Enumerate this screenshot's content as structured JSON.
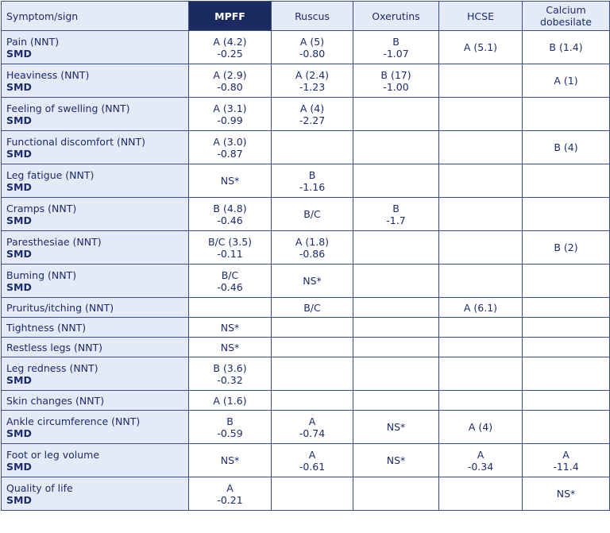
{
  "table": {
    "header": [
      "Symptom/sign",
      "MPFF",
      "Ruscus",
      "Oxerutins",
      "HCSE",
      "Calcium dobesilate"
    ],
    "rows": [
      {
        "symptom": [
          "Pain (NNT)",
          "SMD"
        ],
        "cells": [
          [
            "A (4.2)",
            "-0.25"
          ],
          [
            "A (5)",
            "-0.80"
          ],
          [
            "B",
            "-1.07"
          ],
          [
            "A (5.1)"
          ],
          [
            "B (1.4)"
          ]
        ]
      },
      {
        "symptom": [
          "Heaviness (NNT)",
          "SMD"
        ],
        "cells": [
          [
            "A (2.9)",
            "-0.80"
          ],
          [
            "A (2.4)",
            "-1.23"
          ],
          [
            "B (17)",
            "-1.00"
          ],
          [],
          [
            "A (1)"
          ]
        ]
      },
      {
        "symptom": [
          "Feeling of swelling (NNT)",
          "SMD"
        ],
        "cells": [
          [
            "A (3.1)",
            "-0.99"
          ],
          [
            "A (4)",
            "-2.27"
          ],
          [],
          [],
          []
        ]
      },
      {
        "symptom": [
          "Functional discomfort (NNT)",
          "SMD"
        ],
        "cells": [
          [
            "A (3.0)",
            "-0.87"
          ],
          [],
          [],
          [],
          [
            "B (4)"
          ]
        ]
      },
      {
        "symptom": [
          "Leg fatigue (NNT)",
          "SMD"
        ],
        "cells": [
          [
            "NS*"
          ],
          [
            "B",
            "-1.16"
          ],
          [],
          [],
          []
        ]
      },
      {
        "symptom": [
          "Cramps (NNT)",
          "SMD"
        ],
        "cells": [
          [
            "B (4.8)",
            "-0.46"
          ],
          [
            "B/C"
          ],
          [
            "B",
            "-1.7"
          ],
          [],
          []
        ]
      },
      {
        "symptom": [
          "Paresthesiae (NNT)",
          "SMD"
        ],
        "cells": [
          [
            "B/C (3.5)",
            "-0.11"
          ],
          [
            "A (1.8)",
            "-0.86"
          ],
          [],
          [],
          [
            "B (2)"
          ]
        ]
      },
      {
        "symptom": [
          "Buming (NNT)",
          "SMD"
        ],
        "cells": [
          [
            "B/C",
            "-0.46"
          ],
          [
            "NS*"
          ],
          [],
          [],
          []
        ]
      },
      {
        "symptom": [
          "Pruritus/itching (NNT)"
        ],
        "cells": [
          [],
          [
            "B/C"
          ],
          [],
          [
            "A (6.1)"
          ],
          []
        ]
      },
      {
        "symptom": [
          "Tightness (NNT)"
        ],
        "cells": [
          [
            "NS*"
          ],
          [],
          [],
          [],
          []
        ]
      },
      {
        "symptom": [
          "Restless legs (NNT)"
        ],
        "cells": [
          [
            "NS*"
          ],
          [],
          [],
          [],
          []
        ]
      },
      {
        "symptom": [
          "Leg redness (NNT)",
          "SMD"
        ],
        "cells": [
          [
            "B (3.6)",
            "-0.32"
          ],
          [],
          [],
          [],
          []
        ]
      },
      {
        "symptom": [
          "Skin changes (NNT)"
        ],
        "cells": [
          [
            "A (1.6)"
          ],
          [],
          [],
          [],
          []
        ]
      },
      {
        "symptom": [
          "Ankle circumference (NNT)",
          "SMD"
        ],
        "cells": [
          [
            "B",
            "-0.59"
          ],
          [
            "A",
            "-0.74"
          ],
          [
            "NS*"
          ],
          [
            "A (4)"
          ],
          []
        ]
      },
      {
        "symptom": [
          "Foot or leg volume",
          "SMD"
        ],
        "cells": [
          [
            "NS*"
          ],
          [
            "A",
            "-0.61"
          ],
          [
            "NS*"
          ],
          [
            "A",
            "-0.34"
          ],
          [
            "A",
            "-11.4"
          ]
        ]
      },
      {
        "symptom": [
          "Quality of life",
          "SMD"
        ],
        "cells": [
          [
            "A",
            "-0.21"
          ],
          [],
          [],
          [],
          [
            "NS*"
          ]
        ]
      }
    ]
  }
}
